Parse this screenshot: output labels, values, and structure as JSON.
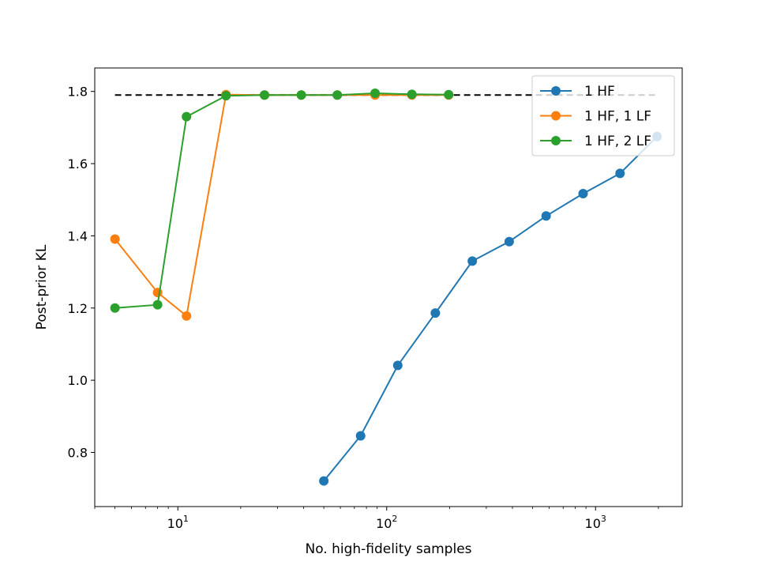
{
  "chart_data": {
    "type": "line",
    "xscale": "log",
    "xlim": [
      4,
      2600
    ],
    "ylim": [
      0.65,
      1.865
    ],
    "xlabel": "No. high-fidelity samples",
    "ylabel": "Post-prior KL",
    "yticks": [
      0.8,
      1.0,
      1.2,
      1.4,
      1.6,
      1.8
    ],
    "ytick_labels": [
      "0.8",
      "1.0",
      "1.2",
      "1.4",
      "1.6",
      "1.8"
    ],
    "xticks_major": [
      {
        "value": 10,
        "base": "10",
        "exp": "1"
      },
      {
        "value": 100,
        "base": "10",
        "exp": "2"
      },
      {
        "value": 1000,
        "base": "10",
        "exp": "3"
      }
    ],
    "reference_line": {
      "y": 1.79,
      "x": [
        5,
        2000
      ],
      "style": "dashed",
      "color": "#000000"
    },
    "legend_position": "upper right",
    "series": [
      {
        "name": "1 HF",
        "color": "#1f77b4",
        "x": [
          50,
          75,
          113,
          171,
          257,
          386,
          580,
          872,
          1310,
          1970
        ],
        "y": [
          0.721,
          0.846,
          1.041,
          1.186,
          1.33,
          1.384,
          1.455,
          1.517,
          1.573,
          1.675
        ]
      },
      {
        "name": "1 HF, 1 LF",
        "color": "#ff7f0e",
        "x": [
          5,
          8,
          11,
          17,
          26,
          39,
          58,
          88,
          132,
          198
        ],
        "y": [
          1.391,
          1.243,
          1.178,
          1.791,
          1.79,
          1.79,
          1.79,
          1.79,
          1.79,
          1.79
        ]
      },
      {
        "name": "1 HF, 2 LF",
        "color": "#2ca02c",
        "x": [
          5,
          8,
          11,
          17,
          26,
          39,
          58,
          88,
          132,
          198
        ],
        "y": [
          1.2,
          1.209,
          1.73,
          1.788,
          1.79,
          1.79,
          1.79,
          1.795,
          1.792,
          1.791
        ]
      }
    ]
  }
}
